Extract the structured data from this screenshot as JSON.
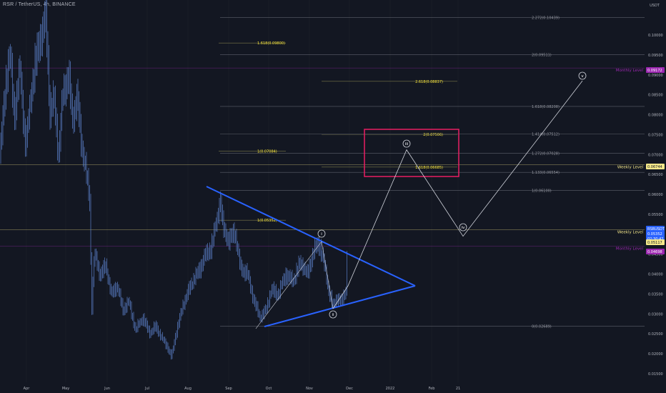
{
  "header": {
    "symbol_title": "RSR / TetherUS, 4h, BINANCE"
  },
  "price_axis": {
    "currency": "USDT",
    "ticks": [
      "0.10000",
      "0.09500",
      "0.09000",
      "0.08500",
      "0.08000",
      "0.07500",
      "0.07000",
      "0.06500",
      "0.06000",
      "0.05500",
      "0.05000",
      "0.04500",
      "0.04000",
      "0.03500",
      "0.03000",
      "0.02500",
      "0.02000",
      "0.01500"
    ],
    "tags": [
      {
        "value": "0.09172",
        "bg": "#9c27b0",
        "fg": "#ffffff"
      },
      {
        "value": "0.06744",
        "bg": "#f5e88a",
        "fg": "#131722"
      },
      {
        "value": "RSRUSDT",
        "bg": "#2962ff",
        "fg": "#ffffff"
      },
      {
        "value": "0.05352",
        "bg": "#2962ff",
        "fg": "#ffffff"
      },
      {
        "value": "02:30:42",
        "bg": "#2962ff",
        "fg": "#ffffff"
      },
      {
        "value": "0.05117",
        "bg": "#f5e88a",
        "fg": "#131722"
      },
      {
        "value": "0.04698",
        "bg": "#9c27b0",
        "fg": "#ffffff"
      }
    ]
  },
  "time_axis": {
    "labels": [
      "Apr",
      "May",
      "Jun",
      "Jul",
      "Aug",
      "Sep",
      "Oct",
      "Nov",
      "Dec",
      "2022",
      "Feb",
      "21"
    ]
  },
  "levels": {
    "monthly_upper": {
      "label": "Monthly Level",
      "price": 0.09172
    },
    "weekly_upper": {
      "label": "Weekly Level",
      "price": 0.06744
    },
    "weekly_lower": {
      "label": "Weekly Level",
      "price": 0.05117
    },
    "monthly_lower": {
      "label": "Monthly Level",
      "price": 0.04698
    }
  },
  "fib_sets": [
    {
      "color": "#ffeb3b",
      "levels": [
        {
          "label": "1.618(0.09800)",
          "price": 0.098
        },
        {
          "label": "1(0.07084)",
          "price": 0.07084
        },
        {
          "label": "1(0.05352)",
          "price": 0.05352
        }
      ]
    },
    {
      "color": "#ffeb3b",
      "levels": [
        {
          "label": "2.618(0.08837)",
          "price": 0.08837
        },
        {
          "label": "2(0.07506)",
          "price": 0.07506
        },
        {
          "label": "1.618(0.06685)",
          "price": 0.06685
        }
      ]
    },
    {
      "color": "#9598a1",
      "levels": [
        {
          "label": "2.272(0.10439)",
          "price": 0.10439
        },
        {
          "label": "2(0.09511)",
          "price": 0.09511
        },
        {
          "label": "1.618(0.08208)",
          "price": 0.08208
        },
        {
          "label": "1.414(0.07512)",
          "price": 0.07512
        },
        {
          "label": "1.272(0.07028)",
          "price": 0.07028
        },
        {
          "label": "1.133(0.06554)",
          "price": 0.06554
        },
        {
          "label": "1(0.06100)",
          "price": 0.061
        },
        {
          "label": "0(0.02689)",
          "price": 0.02689
        }
      ]
    }
  ],
  "waves": [
    {
      "label": "i",
      "price": 0.0498
    },
    {
      "label": "ii",
      "price": 0.0316
    },
    {
      "label": "iii",
      "price": 0.0712
    },
    {
      "label": "iv",
      "price": 0.0495
    },
    {
      "label": "v",
      "price": 0.0885
    }
  ],
  "colors": {
    "background": "#131722",
    "candles": "#5b7fc7",
    "triangle": "#2962ff",
    "target_box": "#e91e63",
    "wave_path": "#d1d4dc",
    "monthly": "#9c27b0",
    "weekly": "#f5e88a"
  }
}
